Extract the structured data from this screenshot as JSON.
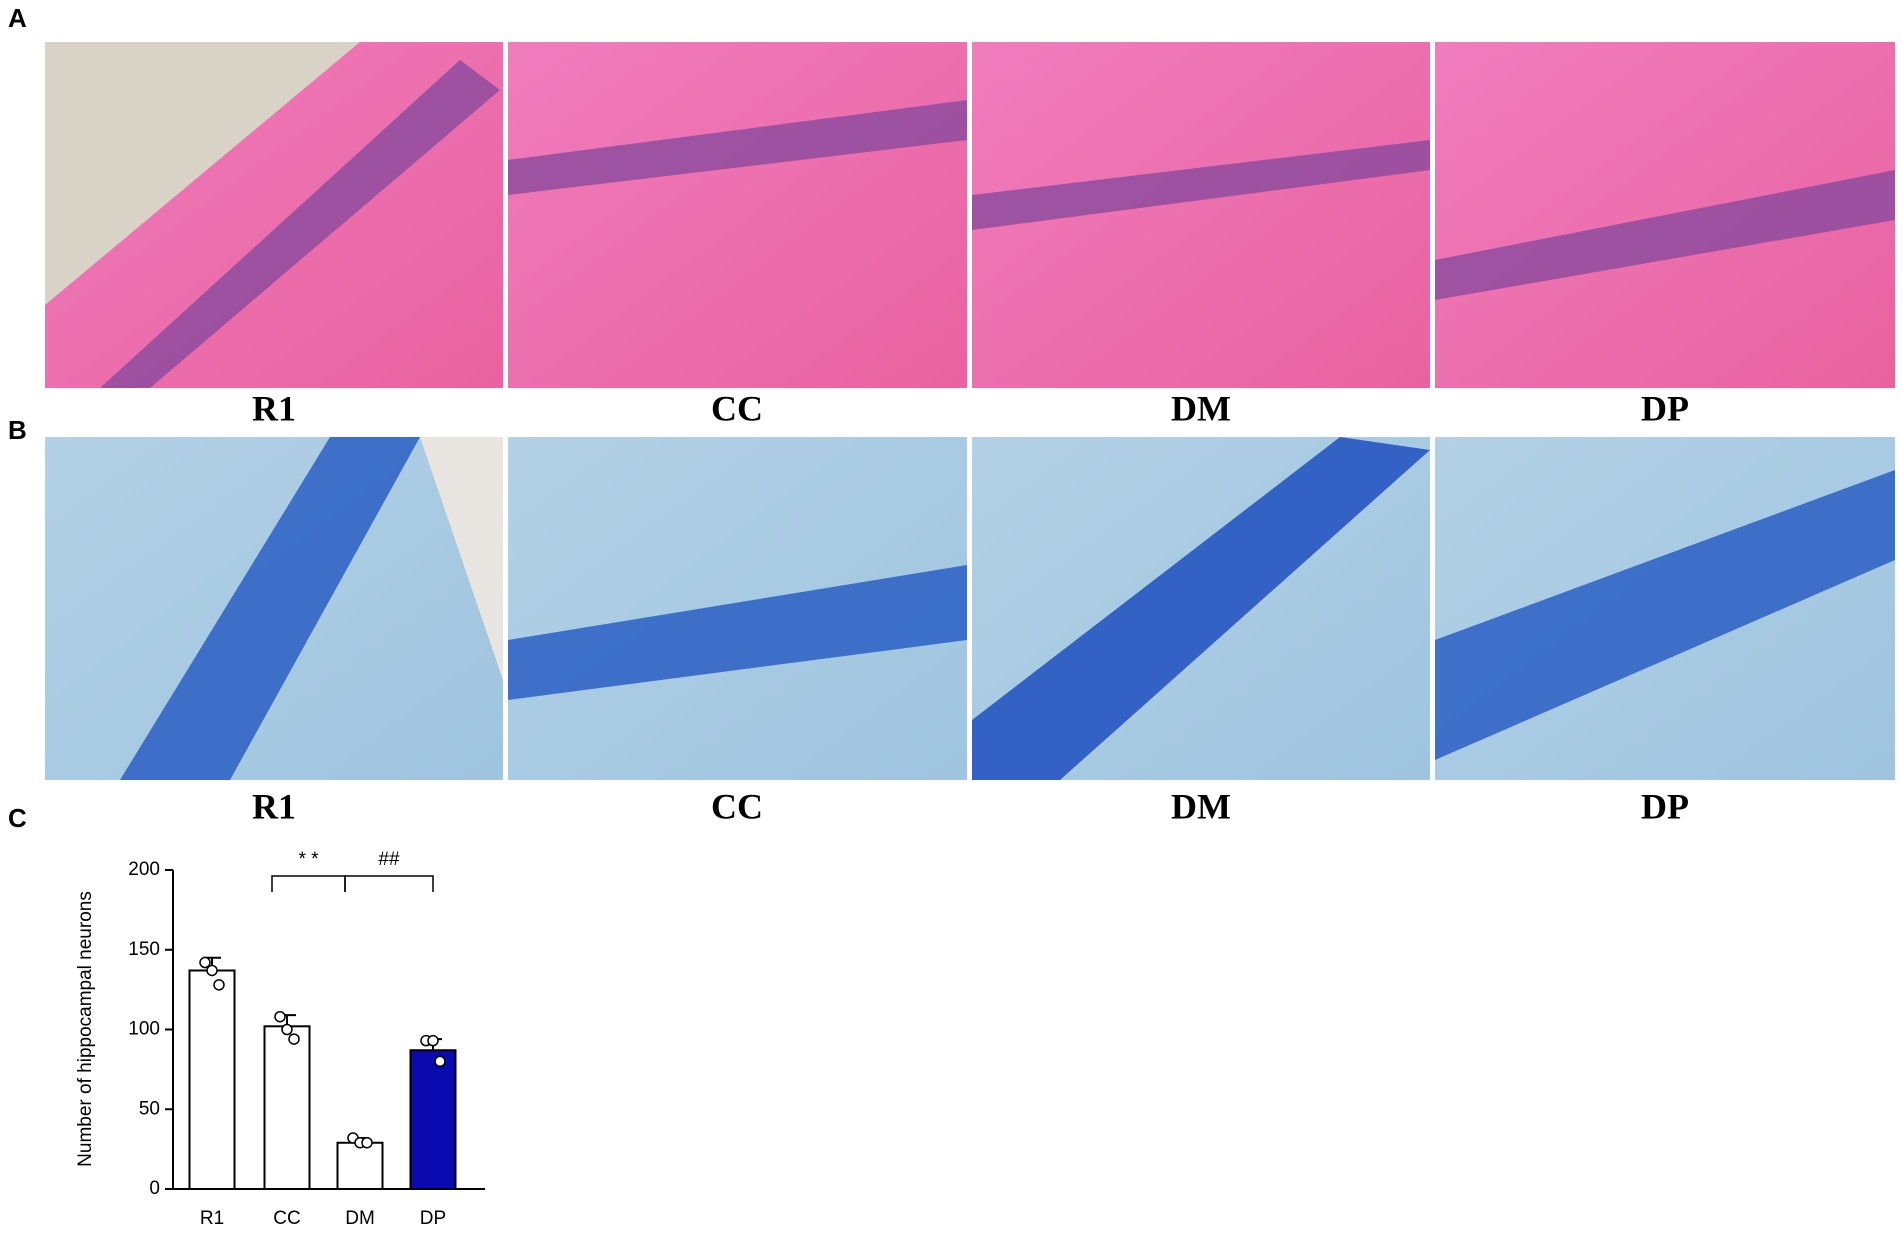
{
  "panels": {
    "A": {
      "label": "A",
      "captions": [
        "R1",
        "CC",
        "DM",
        "DP"
      ]
    },
    "B": {
      "label": "B",
      "captions": [
        "R1",
        "CC",
        "DM",
        "DP"
      ]
    },
    "C": {
      "label": "C"
    }
  },
  "chart_data": {
    "type": "bar",
    "y_label": "Number of hippocampal neurons",
    "categories": [
      "R1",
      "CC",
      "DM",
      "DP"
    ],
    "values": [
      137,
      102,
      29,
      87
    ],
    "errors": [
      8,
      7,
      3,
      7
    ],
    "points": [
      [
        142,
        137,
        128
      ],
      [
        108,
        100,
        94
      ],
      [
        32,
        29,
        29
      ],
      [
        93,
        93,
        80
      ]
    ],
    "colors": [
      "#ffffff",
      "#ffffff",
      "#ffffff",
      "#0a0ab0"
    ],
    "ylim": [
      0,
      200
    ],
    "yticks": [
      0,
      50,
      100,
      150,
      200
    ],
    "annotations": [
      "* *",
      "##"
    ]
  }
}
